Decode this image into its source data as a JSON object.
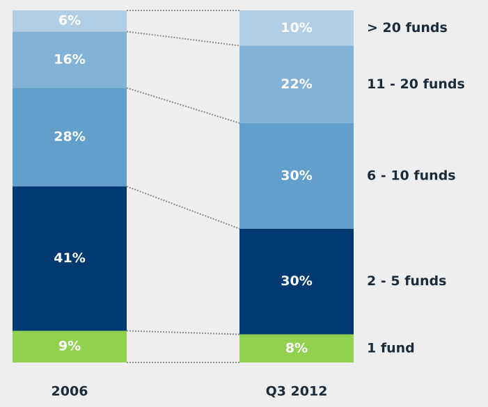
{
  "chart_data": {
    "type": "stacked_bar",
    "categories": [
      "2006",
      "Q3 2012"
    ],
    "ylim": [
      0,
      100
    ],
    "series": [
      {
        "name": "1 fund",
        "color": "#92d050",
        "values": [
          9,
          8
        ],
        "value_labels": [
          "9%",
          "8%"
        ]
      },
      {
        "name": "2 - 5 funds",
        "color": "#003a70",
        "values": [
          41,
          30
        ],
        "value_labels": [
          "41%",
          "30%"
        ]
      },
      {
        "name": "6 - 10 funds",
        "color": "#629fcb",
        "values": [
          28,
          30
        ],
        "value_labels": [
          "28%",
          "30%"
        ]
      },
      {
        "name": "11 - 20 funds",
        "color": "#82b3d6",
        "values": [
          16,
          22
        ],
        "value_labels": [
          "16%",
          "22%"
        ]
      },
      {
        "name": "> 20 funds",
        "color": "#b0cfe6",
        "values": [
          6,
          10
        ],
        "value_labels": [
          "6%",
          "10%"
        ]
      }
    ]
  }
}
